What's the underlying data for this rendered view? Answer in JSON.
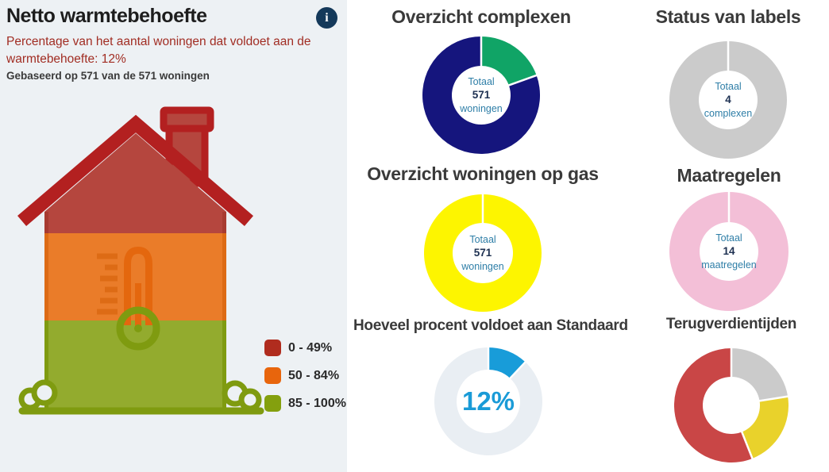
{
  "panel": {
    "title": "Netto warmtebehoefte",
    "info_glyph": "i",
    "subtitle": "Percentage van het aantal woningen dat voldoet aan de warmtebehoefte: 12%",
    "basis": "Gebaseerd op 571 van de 571 woningen",
    "legend": [
      {
        "label": "0 - 49%",
        "color": "#b02c1e"
      },
      {
        "label": "50 - 84%",
        "color": "#e8650c"
      },
      {
        "label": "85 - 100%",
        "color": "#84a00e"
      }
    ]
  },
  "colors": {
    "panel-bg": "#edf1f4",
    "accent-blue": "#1a9bd7",
    "info-icon": "#14395a",
    "subtitle-red": "#a12d23",
    "title-gray": "#3a3a3a",
    "center-label-blue": "#2e7ea7",
    "center-value-dark": "#1d3051",
    "house-roof-stroke": "#b32020",
    "house-red": "#b5463e",
    "house-red-edge": "#a83b31",
    "house-orange": "#ea7c29",
    "house-orange-edge": "#dd6b15",
    "house-green": "#93ab2e",
    "house-olive": "#7f9b10",
    "thermo-orange": "#e4670e"
  },
  "chart_data": [
    {
      "type": "donut",
      "title": "Overzicht complexen",
      "center": {
        "top": "Totaal",
        "value": "571",
        "bottom": "woningen"
      },
      "segments": [
        {
          "color": "#10a466",
          "percent": 19.5
        },
        {
          "color": "#15157d",
          "percent": 80.5
        }
      ]
    },
    {
      "type": "donut",
      "title": "Status van labels",
      "center": {
        "top": "Totaal",
        "value": "4",
        "bottom": "complexen"
      },
      "segments": [
        {
          "color": "#cbcbcb",
          "percent": 100
        }
      ]
    },
    {
      "type": "donut",
      "title": "Overzicht woningen op gas",
      "center": {
        "top": "Totaal",
        "value": "571",
        "bottom": "woningen"
      },
      "segments": [
        {
          "color": "#fdf500",
          "percent": 100
        }
      ]
    },
    {
      "type": "donut",
      "title": "Maatregelen",
      "center": {
        "top": "Totaal",
        "value": "14",
        "bottom": "maatregelen"
      },
      "segments": [
        {
          "color": "#f3bfd7",
          "percent": 100
        }
      ]
    },
    {
      "type": "donut",
      "title": "Hoeveel procent voldoet aan Standaard",
      "center": {
        "value": "12%"
      },
      "segments": [
        {
          "color": "#189cd9",
          "percent": 12
        },
        {
          "color": "#e9eef3",
          "percent": 88
        }
      ]
    },
    {
      "type": "donut",
      "title": "Terugverdientijden",
      "segments": [
        {
          "color": "#cbcbcb",
          "percent": 22.5
        },
        {
          "color": "#e9d22b",
          "percent": 21.5
        },
        {
          "color": "#c94646",
          "percent": 56
        }
      ]
    }
  ]
}
